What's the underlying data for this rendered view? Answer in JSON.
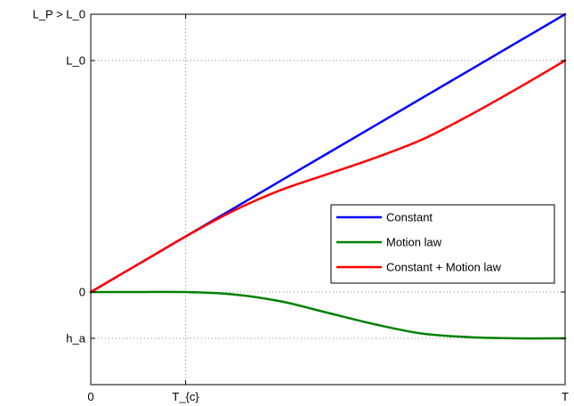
{
  "chart_data": {
    "type": "line",
    "title": "",
    "xlabel": "",
    "ylabel": "",
    "grid": true,
    "legend_position": "middle-right",
    "xlim": [
      0,
      1
    ],
    "ylim": [
      -0.4,
      1.2
    ],
    "x_ticks": [
      {
        "value": 0,
        "label": "0"
      },
      {
        "value": 0.2,
        "label": "T_{c}"
      },
      {
        "value": 1,
        "label": "T"
      }
    ],
    "y_ticks": [
      {
        "value": -0.2,
        "label": "h_a"
      },
      {
        "value": 0,
        "label": "0"
      },
      {
        "value": 1.0,
        "label": "L_0"
      },
      {
        "value": 1.2,
        "label": "L_P > L_0"
      }
    ],
    "x": [
      0,
      0.1,
      0.2,
      0.3,
      0.4,
      0.5,
      0.6,
      0.7,
      0.8,
      0.9,
      1.0
    ],
    "series": [
      {
        "name": "Constant",
        "color": "#0000ff",
        "values": [
          0,
          0.12,
          0.24,
          0.36,
          0.48,
          0.6,
          0.72,
          0.84,
          0.96,
          1.08,
          1.2
        ]
      },
      {
        "name": "Motion law",
        "color": "#008000",
        "values": [
          0,
          0,
          0,
          -0.01,
          -0.04,
          -0.09,
          -0.14,
          -0.18,
          -0.195,
          -0.2,
          -0.2
        ]
      },
      {
        "name": "Constant + Motion law",
        "color": "#ff0000",
        "values": [
          0,
          0.12,
          0.24,
          0.35,
          0.44,
          0.51,
          0.58,
          0.66,
          0.765,
          0.88,
          1.0
        ]
      }
    ]
  }
}
